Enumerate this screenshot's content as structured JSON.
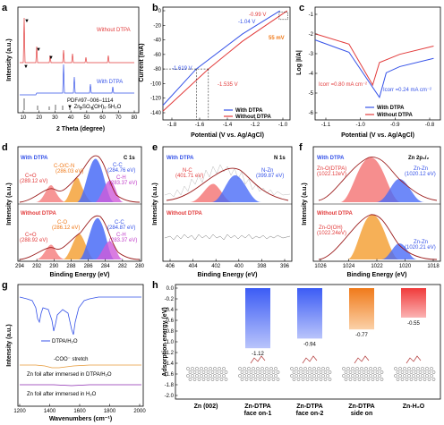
{
  "panels": {
    "a": {
      "label": "a",
      "legend_top": "Without DTPA",
      "legend_bottom": "With DTPA",
      "pdf_label": "PDF#97−006−1114",
      "ref_label": "▼ Zn₄SO₄(OH)₆·5H₂O",
      "xlabel": "2 Theta (degree)",
      "ylabel": "Intensity (a.u.)",
      "xticks": [
        "10",
        "20",
        "30",
        "40",
        "50",
        "60",
        "70",
        "80"
      ],
      "marker": "▼"
    },
    "b": {
      "label": "b",
      "xlabel": "Potential (V vs. Ag/AgCl)",
      "ylabel": "Current (mA)",
      "xticks": [
        "-1.8",
        "-1.6",
        "-1.4",
        "-1.2",
        "-1.0"
      ],
      "yticks": [
        "0",
        "-20",
        "-40",
        "-60",
        "-80",
        "-100",
        "-120",
        "-140"
      ],
      "ann": {
        "v1": "-0.99 V",
        "v2": "-1.04 V",
        "mv": "55 mV",
        "v3": "-1.619 V",
        "v4": "-1.535 V"
      },
      "legend": [
        "With DTPA",
        "Without DTPA"
      ]
    },
    "c": {
      "label": "c",
      "xlabel": "Potential (V vs. Ag/AgCl)",
      "ylabel": "Log |I/A|",
      "xticks": [
        "-1.1",
        "-1.0",
        "-0.9",
        "-0.8"
      ],
      "yticks": [
        "-1",
        "-2",
        "-3",
        "-4",
        "-5",
        "-6"
      ],
      "icorr1": "Icorr =0.80 mA cm⁻²",
      "icorr2": "Icorr =0.24 mA cm⁻²",
      "legend": [
        "With DTPA",
        "Without DTPA"
      ]
    },
    "d": {
      "label": "d",
      "title": "C 1s",
      "top_label": "With DTPA",
      "bottom_label": "Without DTPA",
      "top_peaks": [
        "C-O/C-N",
        "(286.03 eV)",
        "C=O",
        "(289.12 eV)",
        "C-C",
        "(284.76 eV)",
        "C-H",
        "(283.37 eV)"
      ],
      "bottom_peaks": [
        "C-O",
        "(286.12 eV)",
        "C=O",
        "(288.92 eV)",
        "C-C",
        "(284.87 eV)",
        "C-H",
        "(283.37 eV)"
      ],
      "xlabel": "Binding Energy (eV)",
      "ylabel": "Intensity (a.u.)",
      "xticks": [
        "294",
        "292",
        "290",
        "288",
        "286",
        "284",
        "282",
        "280"
      ]
    },
    "e": {
      "label": "e",
      "title": "N 1s",
      "top_label": "With DTPA",
      "bottom_label": "Without DTPA",
      "peaks": [
        "N-C",
        "(401.71 eV)",
        "N-Zn",
        "(399.87 eV)"
      ],
      "xlabel": "Binding Energy (eV)",
      "ylabel": "Intensity (a.u.)",
      "xticks": [
        "406",
        "404",
        "402",
        "400",
        "398",
        "396"
      ]
    },
    "f": {
      "label": "f",
      "title": "Zn 2p₃/₂",
      "top_label": "With DTPA",
      "bottom_label": "Without DTPA",
      "top_peaks": [
        "Zn-O(DTPA)",
        "(1022.12eV)",
        "Zn-Zn",
        "(1020.12 eV)"
      ],
      "bottom_peaks": [
        "Zn-O(OH)",
        "(1022.24eV)",
        "Zn-Zn",
        "(1020.21 eV)"
      ],
      "xlabel": "Binding Energy (eV)",
      "ylabel": "Intensity (a.u.)",
      "xticks": [
        "1026",
        "1024",
        "1022",
        "1020",
        "1018"
      ]
    },
    "g": {
      "label": "g",
      "legend": "DTPA/H₂O",
      "stretch": "-COO⁻ stretch",
      "line2": "Zn foil after immersed in DTPA/H₂O",
      "line3": "Zn foil after immersed in H₂O",
      "xlabel": "Wavenumbers (cm⁻¹)",
      "ylabel": "Intensity (a.u.)",
      "xticks": [
        "1200",
        "1400",
        "1600",
        "1800",
        "2000"
      ]
    },
    "h": {
      "label": "h",
      "ylabel": "Adsorption energy (eV)",
      "yticks": [
        "0.0",
        "-0.2",
        "-0.4",
        "-0.6",
        "-0.8",
        "-1.0",
        "-1.2",
        "-1.4",
        "-1.6",
        "-1.8",
        "-2.0"
      ],
      "cat_labels": [
        "Zn (002)",
        "Zn-DTPA\nface on-1",
        "Zn-DTPA\nface on-2",
        "Zn-DTPA\nside on",
        "Zn-H₂O"
      ]
    }
  },
  "chart_data": [
    {
      "panel": "a",
      "type": "line",
      "xlabel": "2 Theta (degree)",
      "ylabel": "Intensity (a.u.)",
      "series": [
        {
          "name": "Without DTPA",
          "peaks_2theta": [
            8.2,
            16.5,
            25,
            33,
            36,
            39,
            43,
            54,
            70
          ]
        },
        {
          "name": "With DTPA",
          "peaks_2theta": [
            36,
            39,
            43,
            54,
            70,
            82
          ]
        }
      ]
    },
    {
      "panel": "b",
      "type": "line",
      "xlabel": "Potential (V vs. Ag/AgCl)",
      "ylabel": "Current (mA)",
      "xlim": [
        -1.85,
        -0.97
      ],
      "ylim": [
        -150,
        5
      ],
      "series": [
        {
          "name": "With DTPA",
          "x": [
            -1.85,
            -1.619,
            -1.3,
            -1.04
          ],
          "y": [
            -130,
            -80,
            -32,
            0
          ]
        },
        {
          "name": "Without DTPA",
          "x": [
            -1.85,
            -1.535,
            -1.3,
            -0.99
          ],
          "y": [
            -138,
            -80,
            -42,
            0
          ]
        }
      ]
    },
    {
      "panel": "c",
      "type": "line",
      "xlabel": "Potential (V vs. Ag/AgCl)",
      "ylabel": "Log |I/A|",
      "xlim": [
        -1.15,
        -0.78
      ],
      "ylim": [
        -6.5,
        -1
      ],
      "series": [
        {
          "name": "With DTPA",
          "x": [
            -1.15,
            -1.05,
            -0.96,
            -0.94,
            -0.9,
            -0.8
          ],
          "y": [
            -2.6,
            -3.2,
            -5.4,
            -4.2,
            -3.9,
            -3.5
          ]
        },
        {
          "name": "Without DTPA",
          "x": [
            -1.15,
            -1.05,
            -0.98,
            -0.96,
            -0.9,
            -0.8
          ],
          "y": [
            -2.3,
            -2.8,
            -4.8,
            -3.7,
            -3.3,
            -2.9
          ]
        }
      ]
    },
    {
      "panel": "h",
      "type": "bar",
      "ylabel": "Adsorption energy (eV)",
      "ylim": [
        -2.0,
        0.0
      ],
      "categories": [
        "Zn-DTPA face on-1",
        "Zn-DTPA face on-2",
        "Zn-DTPA side on",
        "Zn-H₂O"
      ],
      "values": [
        -1.12,
        -0.94,
        -0.77,
        -0.55
      ],
      "value_labels": [
        "-1.12",
        "-0.94",
        "-0.77",
        "-0.55"
      ],
      "colors": [
        "#4a6cf7",
        "#4a6cf7",
        "#f28b30",
        "#f04e4e"
      ]
    }
  ]
}
